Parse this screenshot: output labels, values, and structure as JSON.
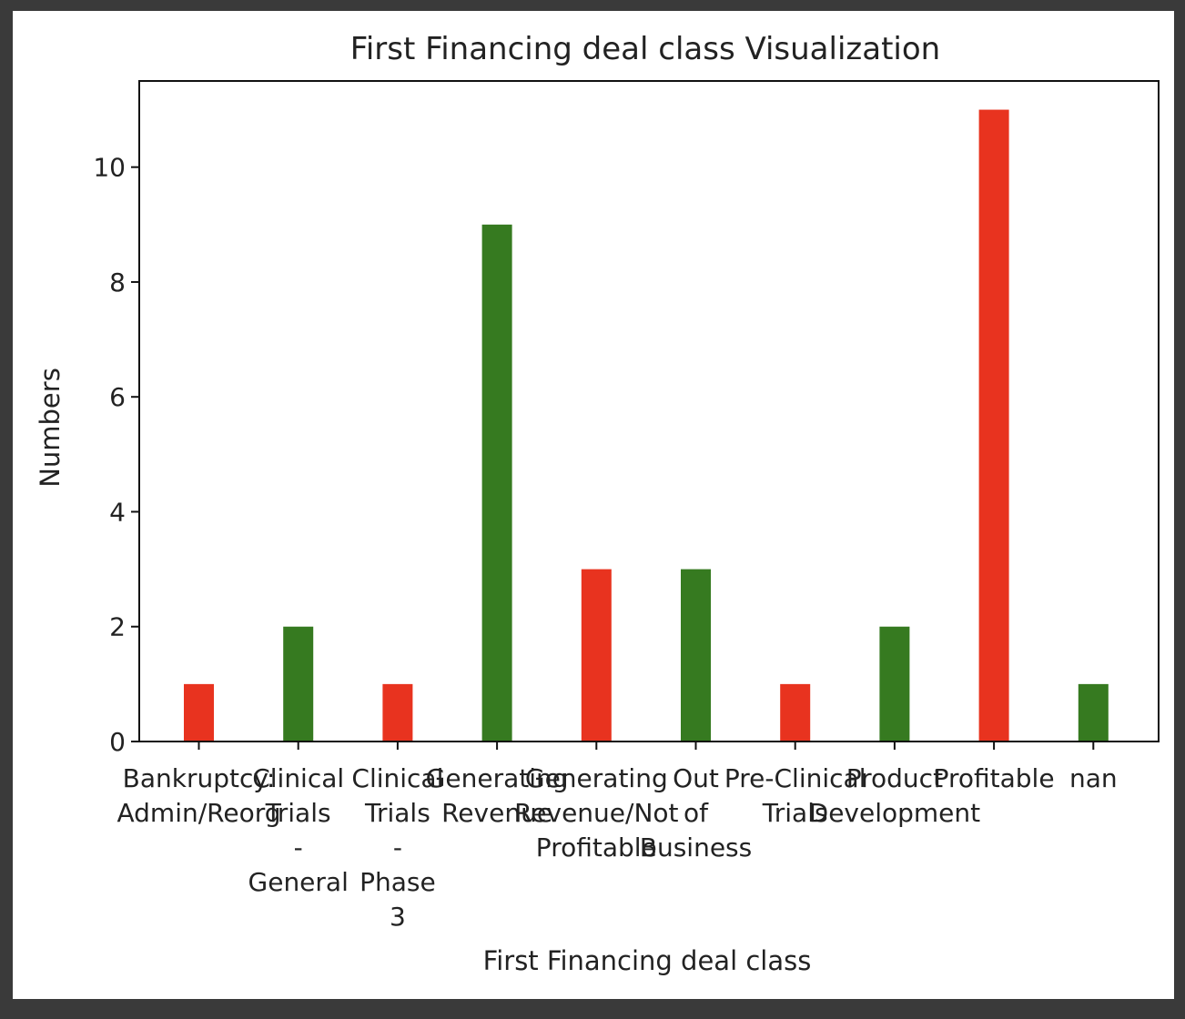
{
  "chart_data": {
    "type": "bar",
    "title": "First Financing deal class Visualization",
    "xlabel": "First Financing deal class",
    "ylabel": "Numbers",
    "ylim": [
      0,
      11.5
    ],
    "yticks": [
      0,
      2,
      4,
      6,
      8,
      10
    ],
    "grid": false,
    "legend": "none",
    "categories": [
      [
        "Bankruptcy:",
        "Admin/Reorg"
      ],
      [
        "Clinical",
        "Trials",
        "-",
        "General"
      ],
      [
        "Clinical",
        "Trials",
        "-",
        "Phase",
        "3"
      ],
      [
        "Generating",
        "Revenue"
      ],
      [
        "Generating",
        "Revenue/Not",
        "Profitable"
      ],
      [
        "Out",
        "of",
        "Business"
      ],
      [
        "Pre-Clinical",
        "Trials"
      ],
      [
        "Product",
        "Development"
      ],
      [
        "Profitable"
      ],
      [
        "nan"
      ]
    ],
    "values": [
      1,
      2,
      1,
      9,
      3,
      3,
      1,
      2,
      11,
      1
    ],
    "bar_colors": [
      "#e8331f",
      "#367a20",
      "#e8331f",
      "#367a20",
      "#e8331f",
      "#367a20",
      "#e8331f",
      "#367a20",
      "#e8331f",
      "#367a20"
    ]
  }
}
